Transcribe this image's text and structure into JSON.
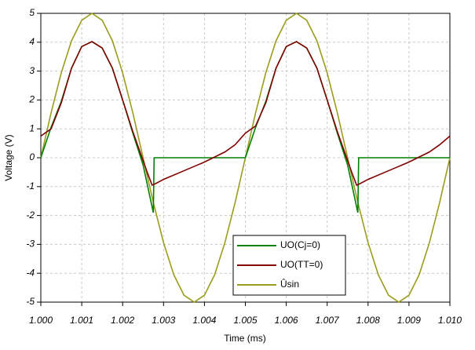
{
  "chart_data": {
    "type": "line",
    "xlabel": "Time (ms)",
    "ylabel": "Voltage (V)",
    "xlim": [
      1.0,
      1.01
    ],
    "ylim": [
      -5,
      5
    ],
    "xticks": [
      {
        "value": 1.0,
        "label": "1.000"
      },
      1.001,
      1.002,
      1.003,
      1.004,
      1.005,
      1.006,
      1.007,
      1.008,
      1.009,
      {
        "value": 1.01,
        "label": "1.010"
      }
    ],
    "yticks": [
      -5,
      -4,
      -3,
      -2,
      -1,
      0,
      1,
      2,
      3,
      4,
      5
    ],
    "grid": true,
    "legend": "lower-right",
    "series": [
      {
        "name": "UO(Cj=0)",
        "color": "#008000",
        "x": [
          1.0,
          1.00025,
          1.0005,
          1.00075,
          1.001,
          1.00125,
          1.0015,
          1.00175,
          1.002,
          1.00225,
          1.0025,
          1.00275,
          1.00277,
          1.005,
          1.00525,
          1.0055,
          1.00575,
          1.006,
          1.00625,
          1.0065,
          1.00675,
          1.007,
          1.00725,
          1.0075,
          1.00775,
          1.00777,
          1.01
        ],
        "values": [
          0,
          1.05,
          1.95,
          3.1,
          3.85,
          4.02,
          3.8,
          3.1,
          2.0,
          0.85,
          -0.25,
          -1.9,
          0,
          0,
          1.05,
          1.95,
          3.1,
          3.85,
          4.02,
          3.8,
          3.1,
          2.0,
          0.85,
          -0.25,
          -1.9,
          0,
          0
        ]
      },
      {
        "name": "UO(TT=0)",
        "color": "#800000",
        "x": [
          1.0,
          1.00025,
          1.0005,
          1.00075,
          1.001,
          1.00125,
          1.0015,
          1.00175,
          1.002,
          1.00225,
          1.0025,
          1.0026,
          1.00272,
          1.0028,
          1.003,
          1.0035,
          1.004,
          1.0045,
          1.00475,
          1.005,
          1.00525,
          1.0055,
          1.00575,
          1.006,
          1.00625,
          1.0065,
          1.00675,
          1.007,
          1.00725,
          1.0075,
          1.0076,
          1.00772,
          1.0078,
          1.008,
          1.0085,
          1.009,
          1.0095,
          1.00975,
          1.01
        ],
        "values": [
          0.75,
          1.0,
          1.9,
          3.1,
          3.85,
          4.02,
          3.8,
          3.1,
          2.0,
          0.9,
          -0.1,
          -0.5,
          -0.95,
          -0.9,
          -0.75,
          -0.45,
          -0.15,
          0.2,
          0.45,
          0.85,
          1.1,
          1.9,
          3.1,
          3.85,
          4.02,
          3.8,
          3.1,
          2.0,
          0.9,
          -0.1,
          -0.5,
          -0.95,
          -0.9,
          -0.75,
          -0.45,
          -0.15,
          0.2,
          0.45,
          0.75
        ]
      },
      {
        "name": "Ûsin",
        "color": "#9c9c1c",
        "x": [
          1.0,
          1.00025,
          1.0005,
          1.00075,
          1.001,
          1.00125,
          1.0015,
          1.00175,
          1.002,
          1.00225,
          1.0025,
          1.00275,
          1.003,
          1.00325,
          1.0035,
          1.00375,
          1.004,
          1.00425,
          1.0045,
          1.00475,
          1.005,
          1.00525,
          1.0055,
          1.00575,
          1.006,
          1.00625,
          1.0065,
          1.00675,
          1.007,
          1.00725,
          1.0075,
          1.00775,
          1.008,
          1.00825,
          1.0085,
          1.00875,
          1.009,
          1.00925,
          1.0095,
          1.00975,
          1.01
        ],
        "values": [
          0,
          1.55,
          2.94,
          4.05,
          4.76,
          5,
          4.76,
          4.05,
          2.94,
          1.55,
          0,
          -1.55,
          -2.94,
          -4.05,
          -4.76,
          -5,
          -4.76,
          -4.05,
          -2.94,
          -1.55,
          0,
          1.55,
          2.94,
          4.05,
          4.76,
          5,
          4.76,
          4.05,
          2.94,
          1.55,
          0,
          -1.55,
          -2.94,
          -4.05,
          -4.76,
          -5,
          -4.76,
          -4.05,
          -2.94,
          -1.55,
          0
        ]
      }
    ]
  }
}
